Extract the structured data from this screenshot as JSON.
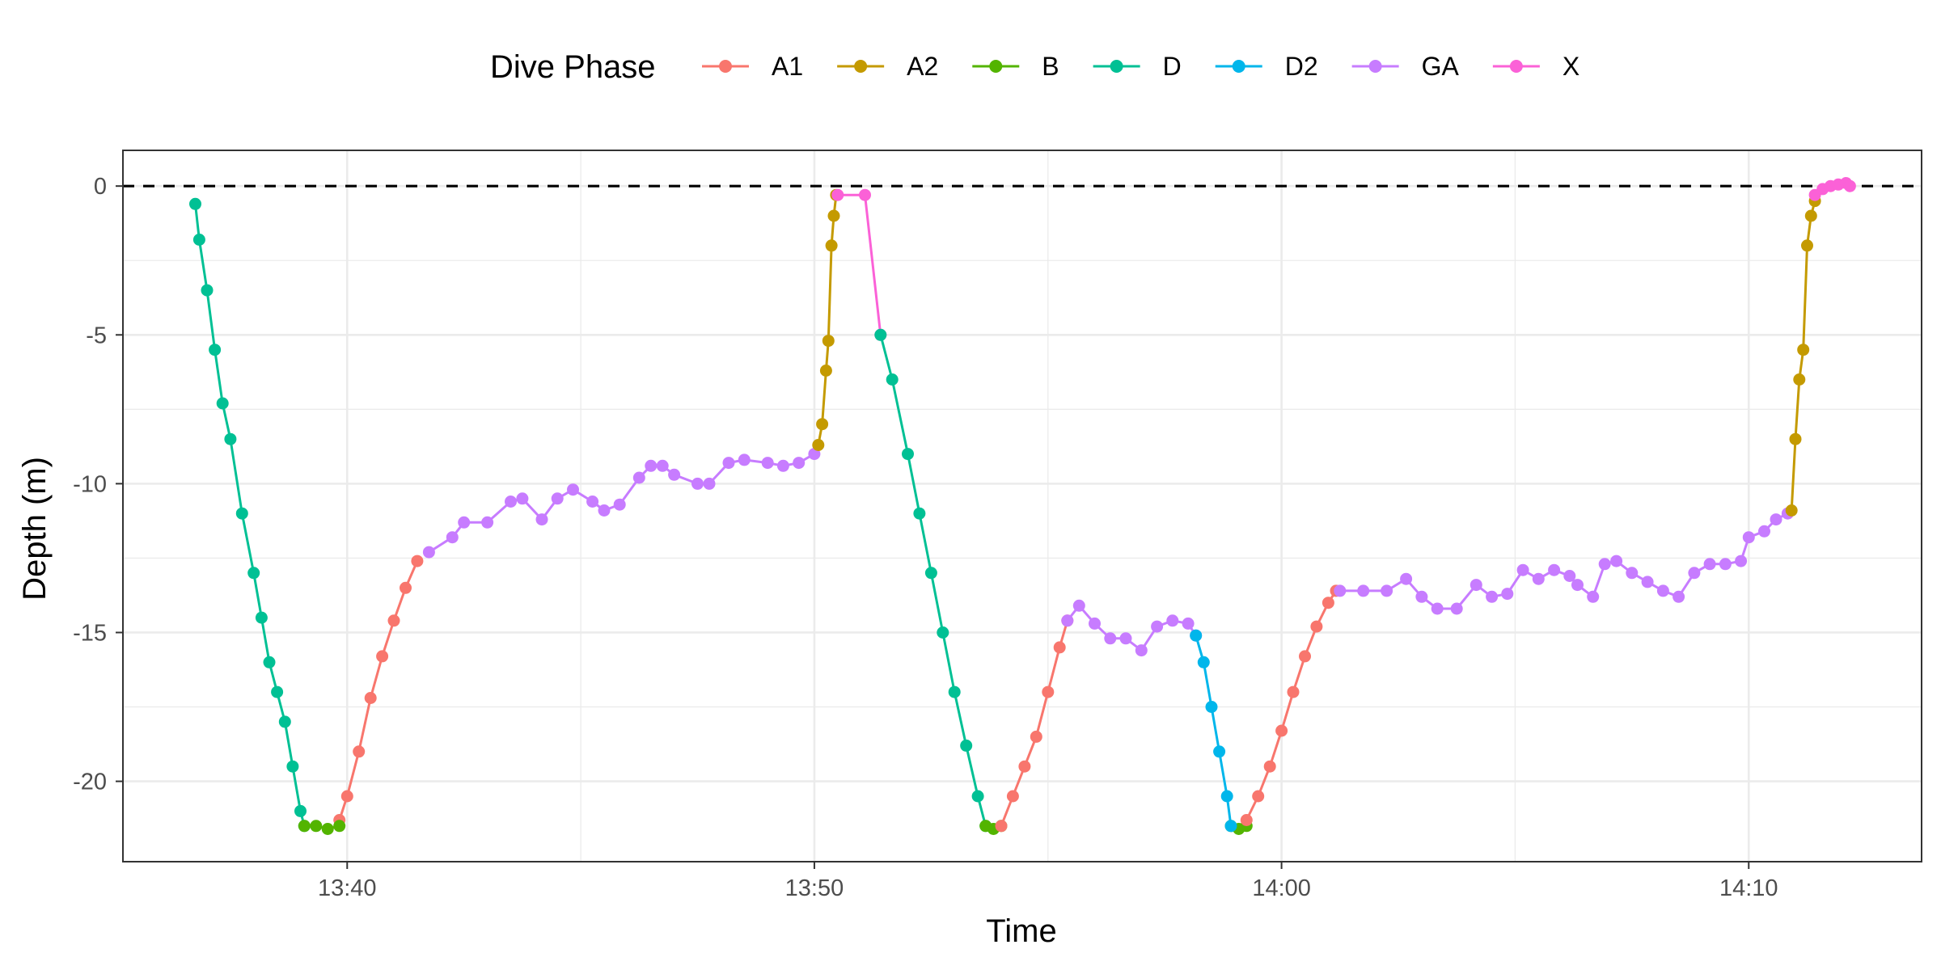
{
  "chart_data": {
    "type": "line",
    "title": "",
    "xlabel": "Time",
    "ylabel": "Depth (m)",
    "x_unit": "clock time (HH:MM)",
    "xlim": [
      "13:35:12",
      "14:13:42"
    ],
    "ylim": [
      -22.7,
      1.2
    ],
    "x_ticks": [
      "13:40",
      "13:50",
      "14:00",
      "14:10"
    ],
    "y_ticks": [
      0,
      -5,
      -10,
      -15,
      -20
    ],
    "y_tick_labels": [
      "0",
      "-5",
      "-10",
      "-15",
      "-20"
    ],
    "reference_line": {
      "y": 0,
      "style": "dashed",
      "color": "#000000"
    },
    "grid": true,
    "markers": true,
    "legend": {
      "title": "Dive Phase",
      "position": "top"
    },
    "series": [
      {
        "name": "A1",
        "color": "#F8766D",
        "points": [
          [
            "13:39:50",
            -21.3
          ],
          [
            "13:40:00",
            -20.5
          ],
          [
            "13:40:15",
            -19.0
          ],
          [
            "13:40:30",
            -17.2
          ],
          [
            "13:40:45",
            -15.8
          ],
          [
            "13:41:00",
            -14.6
          ],
          [
            "13:41:15",
            -13.5
          ],
          [
            "13:41:30",
            -12.6
          ]
        ]
      },
      {
        "name": "GA",
        "color": "#C77CFF",
        "points": [
          [
            "13:41:45",
            -12.3
          ],
          [
            "13:42:15",
            -11.8
          ],
          [
            "13:42:30",
            -11.3
          ],
          [
            "13:43:00",
            -11.3
          ],
          [
            "13:43:30",
            -10.6
          ],
          [
            "13:43:45",
            -10.5
          ],
          [
            "13:44:10",
            -11.2
          ],
          [
            "13:44:30",
            -10.5
          ],
          [
            "13:44:50",
            -10.2
          ],
          [
            "13:45:15",
            -10.6
          ],
          [
            "13:45:30",
            -10.9
          ],
          [
            "13:45:50",
            -10.7
          ],
          [
            "13:46:15",
            -9.8
          ],
          [
            "13:46:30",
            -9.4
          ],
          [
            "13:46:45",
            -9.4
          ],
          [
            "13:47:00",
            -9.7
          ],
          [
            "13:47:30",
            -10.0
          ],
          [
            "13:47:45",
            -10.0
          ],
          [
            "13:48:10",
            -9.3
          ],
          [
            "13:48:30",
            -9.2
          ],
          [
            "13:49:00",
            -9.3
          ],
          [
            "13:49:20",
            -9.4
          ],
          [
            "13:49:40",
            -9.3
          ],
          [
            "13:50:00",
            -9.0
          ]
        ]
      },
      {
        "name": "A2",
        "color": "#C49A00",
        "points": [
          [
            "13:50:05",
            -8.7
          ],
          [
            "13:50:10",
            -8.0
          ],
          [
            "13:50:15",
            -6.2
          ],
          [
            "13:50:18",
            -5.2
          ],
          [
            "13:50:22",
            -2.0
          ],
          [
            "13:50:25",
            -1.0
          ],
          [
            "13:50:28",
            -0.3
          ]
        ]
      },
      {
        "name": "X",
        "color": "#FB61D7",
        "points": [
          [
            "13:50:30",
            -0.3
          ],
          [
            "13:51:05",
            -0.3
          ],
          [
            "13:51:25",
            -5.0
          ]
        ]
      },
      {
        "name": "D",
        "color": "#00C094",
        "points": [
          [
            "13:36:45",
            -0.6
          ],
          [
            "13:36:50",
            -1.8
          ],
          [
            "13:37:00",
            -3.5
          ],
          [
            "13:37:10",
            -5.5
          ],
          [
            "13:37:20",
            -7.3
          ],
          [
            "13:37:30",
            -8.5
          ],
          [
            "13:37:45",
            -11.0
          ],
          [
            "13:38:00",
            -13.0
          ],
          [
            "13:38:10",
            -14.5
          ],
          [
            "13:38:20",
            -16.0
          ],
          [
            "13:38:30",
            -17.0
          ],
          [
            "13:38:40",
            -18.0
          ],
          [
            "13:38:50",
            -19.5
          ],
          [
            "13:39:00",
            -21.0
          ],
          [
            "13:39:05",
            -21.5
          ],
          null,
          [
            "13:51:25",
            -5.0
          ],
          [
            "13:51:40",
            -6.5
          ],
          [
            "13:52:00",
            -9.0
          ],
          [
            "13:52:15",
            -11.0
          ],
          [
            "13:52:30",
            -13.0
          ],
          [
            "13:52:45",
            -15.0
          ],
          [
            "13:53:00",
            -17.0
          ],
          [
            "13:53:15",
            -18.8
          ],
          [
            "13:53:30",
            -20.5
          ],
          [
            "13:53:40",
            -21.5
          ]
        ]
      },
      {
        "name": "B",
        "color": "#53B400",
        "points": [
          [
            "13:39:05",
            -21.5
          ],
          [
            "13:39:20",
            -21.5
          ],
          [
            "13:39:35",
            -21.6
          ],
          [
            "13:39:50",
            -21.5
          ],
          null,
          [
            "13:53:40",
            -21.5
          ],
          [
            "13:53:50",
            -21.6
          ],
          [
            "13:54:00",
            -21.5
          ],
          null,
          [
            "13:58:55",
            -21.5
          ],
          [
            "13:59:05",
            -21.6
          ],
          [
            "13:59:15",
            -21.5
          ]
        ]
      },
      {
        "name": "A1",
        "color": "#F8766D",
        "points": [
          [
            "13:54:00",
            -21.5
          ],
          [
            "13:54:15",
            -20.5
          ],
          [
            "13:54:30",
            -19.5
          ],
          [
            "13:54:45",
            -18.5
          ],
          [
            "13:55:00",
            -17.0
          ],
          [
            "13:55:15",
            -15.5
          ],
          [
            "13:55:25",
            -14.6
          ],
          null,
          [
            "13:59:15",
            -21.3
          ],
          [
            "13:59:30",
            -20.5
          ],
          [
            "13:59:45",
            -19.5
          ],
          [
            "14:00:00",
            -18.3
          ],
          [
            "14:00:15",
            -17.0
          ],
          [
            "14:00:30",
            -15.8
          ],
          [
            "14:00:45",
            -14.8
          ],
          [
            "14:01:00",
            -14.0
          ],
          [
            "14:01:10",
            -13.6
          ]
        ]
      },
      {
        "name": "GA",
        "color": "#C77CFF",
        "points": [
          [
            "13:55:25",
            -14.6
          ],
          [
            "13:55:40",
            -14.1
          ],
          [
            "13:56:00",
            -14.7
          ],
          [
            "13:56:20",
            -15.2
          ],
          [
            "13:56:40",
            -15.2
          ],
          [
            "13:57:00",
            -15.6
          ],
          [
            "13:57:20",
            -14.8
          ],
          [
            "13:57:40",
            -14.6
          ],
          [
            "13:58:00",
            -14.7
          ],
          [
            "13:58:10",
            -15.1
          ],
          null,
          [
            "14:01:15",
            -13.6
          ],
          [
            "14:01:45",
            -13.6
          ],
          [
            "14:02:15",
            -13.6
          ],
          [
            "14:02:40",
            -13.2
          ],
          [
            "14:03:00",
            -13.8
          ],
          [
            "14:03:20",
            -14.2
          ],
          [
            "14:03:45",
            -14.2
          ],
          [
            "14:04:10",
            -13.4
          ],
          [
            "14:04:30",
            -13.8
          ],
          [
            "14:04:50",
            -13.7
          ],
          [
            "14:05:10",
            -12.9
          ],
          [
            "14:05:30",
            -13.2
          ],
          [
            "14:05:50",
            -12.9
          ],
          [
            "14:06:10",
            -13.1
          ],
          [
            "14:06:20",
            -13.4
          ],
          [
            "14:06:40",
            -13.8
          ],
          [
            "14:06:55",
            -12.7
          ],
          [
            "14:07:10",
            -12.6
          ],
          [
            "14:07:30",
            -13.0
          ],
          [
            "14:07:50",
            -13.3
          ],
          [
            "14:08:10",
            -13.6
          ],
          [
            "14:08:30",
            -13.8
          ],
          [
            "14:08:50",
            -13.0
          ],
          [
            "14:09:10",
            -12.7
          ],
          [
            "14:09:30",
            -12.7
          ],
          [
            "14:09:50",
            -12.6
          ],
          [
            "14:10:00",
            -11.8
          ],
          [
            "14:10:20",
            -11.6
          ],
          [
            "14:10:35",
            -11.2
          ],
          [
            "14:10:50",
            -11.0
          ]
        ]
      },
      {
        "name": "D2",
        "color": "#00B6EB",
        "points": [
          [
            "13:58:10",
            -15.1
          ],
          [
            "13:58:20",
            -16.0
          ],
          [
            "13:58:30",
            -17.5
          ],
          [
            "13:58:40",
            -19.0
          ],
          [
            "13:58:50",
            -20.5
          ],
          [
            "13:58:55",
            -21.5
          ]
        ]
      },
      {
        "name": "A2",
        "color": "#C49A00",
        "points": [
          [
            "14:10:55",
            -10.9
          ],
          [
            "14:11:00",
            -8.5
          ],
          [
            "14:11:05",
            -6.5
          ],
          [
            "14:11:10",
            -5.5
          ],
          [
            "14:11:15",
            -2.0
          ],
          [
            "14:11:20",
            -1.0
          ],
          [
            "14:11:25",
            -0.5
          ]
        ]
      },
      {
        "name": "X",
        "color": "#FB61D7",
        "points": [
          [
            "14:11:25",
            -0.3
          ],
          [
            "14:11:35",
            -0.1
          ],
          [
            "14:11:45",
            0.0
          ],
          [
            "14:11:55",
            0.05
          ],
          [
            "14:12:05",
            0.1
          ],
          [
            "14:12:10",
            0.0
          ]
        ]
      }
    ],
    "legend_entries": [
      {
        "name": "A1",
        "color": "#F8766D"
      },
      {
        "name": "A2",
        "color": "#C49A00"
      },
      {
        "name": "B",
        "color": "#53B400"
      },
      {
        "name": "D",
        "color": "#00C094"
      },
      {
        "name": "D2",
        "color": "#00B6EB"
      },
      {
        "name": "GA",
        "color": "#C77CFF"
      },
      {
        "name": "X",
        "color": "#FB61D7"
      }
    ]
  }
}
